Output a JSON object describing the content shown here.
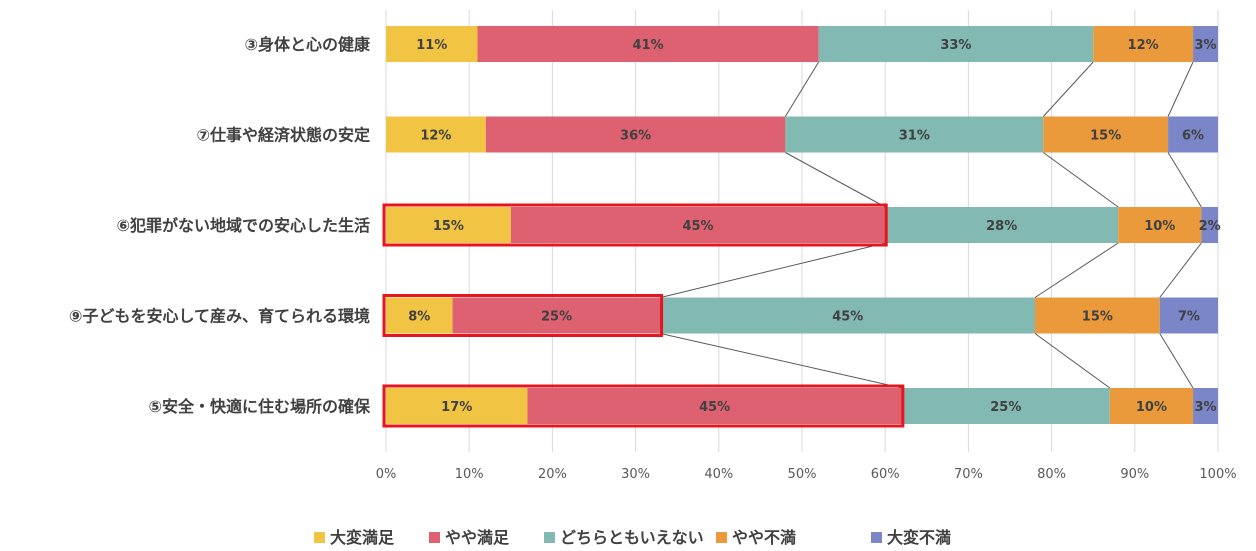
{
  "chart_data": {
    "type": "bar",
    "orientation": "horizontal",
    "stacked": "percent",
    "categories": [
      "③身体と心の健康",
      "⑦仕事や経済状態の安定",
      "⑥犯罪がない地域での安心した生活",
      "⑨子どもを安心して産み、育てられる環境",
      "⑤安全・快適に住む場所の確保"
    ],
    "series": [
      {
        "name": "大変満足",
        "color": "#F2C443",
        "values": [
          11,
          12,
          15,
          8,
          17
        ],
        "labels": [
          "11%",
          "12%",
          "15%",
          "8%",
          "17%"
        ]
      },
      {
        "name": "やや満足",
        "color": "#DE6172",
        "values": [
          41,
          36,
          45,
          25,
          45
        ],
        "labels": [
          "41%",
          "36%",
          "45%",
          "25%",
          "45%"
        ]
      },
      {
        "name": "どちらともいえない",
        "color": "#82B9B2",
        "values": [
          33,
          31,
          28,
          45,
          25
        ],
        "labels": [
          "33%",
          "31%",
          "28%",
          "45%",
          "25%"
        ]
      },
      {
        "name": "やや不満",
        "color": "#EA9A3A",
        "values": [
          12,
          15,
          10,
          15,
          10
        ],
        "labels": [
          "12%",
          "15%",
          "10%",
          "15%",
          "10%"
        ]
      },
      {
        "name": "大変不満",
        "color": "#7A86C8",
        "values": [
          3,
          6,
          2,
          7,
          3
        ],
        "labels": [
          "3%",
          "6%",
          "2%",
          "7%",
          "3%"
        ]
      }
    ],
    "xlim": [
      0,
      100
    ],
    "xticks": [
      "0%",
      "10%",
      "20%",
      "30%",
      "40%",
      "50%",
      "60%",
      "70%",
      "80%",
      "90%",
      "100%"
    ],
    "grid": "vertical",
    "legend_position": "bottom",
    "series_connector_lines": true,
    "highlighted": [
      {
        "category_index": 2,
        "through_series_index": 1,
        "color": "#E8141E"
      },
      {
        "category_index": 3,
        "through_series_index": 1,
        "color": "#E8141E"
      },
      {
        "category_index": 4,
        "through_series_index": 1,
        "color": "#E8141E"
      }
    ]
  }
}
